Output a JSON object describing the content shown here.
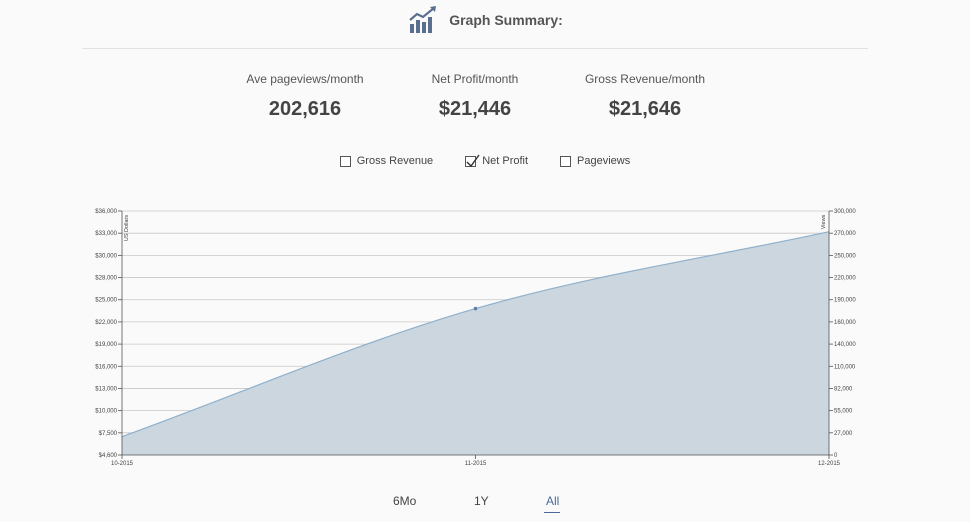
{
  "header": {
    "title": "Graph Summary:",
    "icon": "bar-chart-trend-icon"
  },
  "metrics": [
    {
      "label": "Ave pageviews/month",
      "value": "202,616"
    },
    {
      "label": "Net Profit/month",
      "value": "$21,446"
    },
    {
      "label": "Gross Revenue/month",
      "value": "$21,646"
    }
  ],
  "legend": [
    {
      "label": "Gross Revenue",
      "checked": false
    },
    {
      "label": "Net Profit",
      "checked": true
    },
    {
      "label": "Pageviews",
      "checked": false
    }
  ],
  "ranges": {
    "options": [
      "6Mo",
      "1Y",
      "All"
    ],
    "active": "All"
  },
  "colors": {
    "area_fill": "#cbd6de",
    "area_line": "#8fb0cc",
    "grid": "#c8c8c8",
    "active_range": "#4a6a9a"
  },
  "chart_data": {
    "type": "area",
    "x": [
      "10-2015",
      "11-2015",
      "12-2015"
    ],
    "series": [
      {
        "name": "Net Profit",
        "values": [
          7000,
          23800,
          33200
        ]
      }
    ],
    "ylabel": "US Dollars",
    "y2label": "Views",
    "y_ticks": [
      "$4,600",
      "$7,500",
      "$10,000",
      "$13,000",
      "$16,000",
      "$19,000",
      "$22,000",
      "$25,000",
      "$28,000",
      "$30,000",
      "$33,000",
      "$36,000"
    ],
    "y2_ticks": [
      "0",
      "27,000",
      "55,000",
      "82,000",
      "110,000",
      "140,000",
      "160,000",
      "190,000",
      "220,000",
      "250,000",
      "270,000",
      "300,000"
    ],
    "ylim": [
      4600,
      36000
    ],
    "grid": true
  }
}
